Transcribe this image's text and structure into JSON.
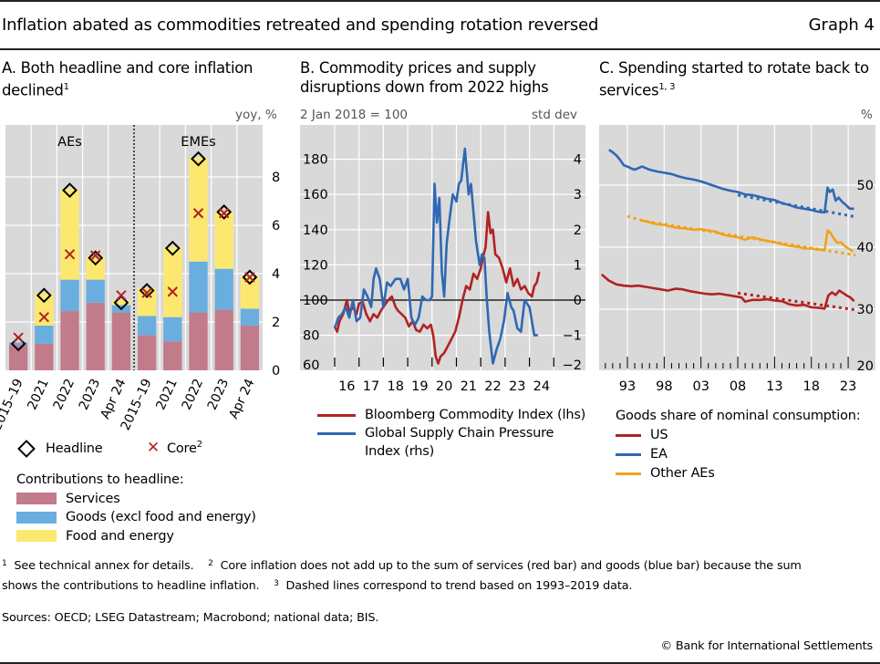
{
  "header": {
    "title": "Inflation abated as commodities retreated and spending rotation reversed",
    "graph_number": "Graph 4"
  },
  "colors": {
    "services": "#c27b8a",
    "goods": "#6aaee0",
    "food_energy": "#fde86f",
    "plot_bg": "#d9d9d9",
    "bloomberg": "#b22222",
    "gscpi": "#2f68b3",
    "us": "#b22222",
    "ea": "#2f68b3",
    "other_aes": "#f0a21c"
  },
  "panels": {
    "a": {
      "title_line1": "A. Both headline and core inflation",
      "title_line2": "declined",
      "title_sup": "1",
      "unit": "yoy, %",
      "legend_headline": "Headline",
      "legend_core": "Core",
      "legend_core_sup": "2",
      "contrib_title": "Contributions to headline:",
      "contrib_services": "Services",
      "contrib_goods": "Goods (excl food and energy)",
      "contrib_food": "Food and energy"
    },
    "b": {
      "title_line1": "B. Commodity prices and supply",
      "title_line2": "disruptions down from 2022 highs",
      "unit_left": "2 Jan 2018 = 100",
      "unit_right": "std dev",
      "legend_bloomberg": "Bloomberg Commodity Index (lhs)",
      "legend_gscpi_1": "Global Supply Chain Pressure",
      "legend_gscpi_2": "Index (rhs)"
    },
    "c": {
      "title_line1": "C. Spending started to rotate back to",
      "title_line2": "services",
      "title_sup": "1, 3",
      "unit": "%",
      "legend_title": "Goods share of nominal consumption:",
      "legend_us": "US",
      "legend_ea": "EA",
      "legend_other": "Other AEs"
    }
  },
  "footnotes": {
    "n1_mark": "1",
    "n1": "See technical annex for details.",
    "n2_mark": "2",
    "n2_a": "Core inflation does not add up to the sum of services (red bar) and goods (blue bar) because the sum",
    "n2_b": "shows the contributions to headline inflation.",
    "n3_mark": "3",
    "n3": "Dashed lines correspond to trend based on 1993–2019 data."
  },
  "sources": "Sources: OECD; LSEG Datastream; Macrobond; national data; BIS.",
  "copyright": "© Bank for International Settlements",
  "chart_data": [
    {
      "type": "bar",
      "stacked": true,
      "title": "A. Both headline and core inflation declined",
      "ylabel": "yoy, %",
      "ylim": [
        0,
        9
      ],
      "yticks": [
        0,
        2,
        4,
        6,
        8
      ],
      "y_axis_side": "right",
      "grid": true,
      "groups": [
        {
          "name": "AEs",
          "categories": [
            "2015–19",
            "2021",
            "2022",
            "2023",
            "Apr 24"
          ]
        },
        {
          "name": "EMEs",
          "categories": [
            "2015–19",
            "2021",
            "2022",
            "2023",
            "Apr 24"
          ]
        }
      ],
      "categories": [
        "2015–19",
        "2021",
        "2022",
        "2023",
        "Apr 24",
        "2015–19",
        "2021",
        "2022",
        "2023",
        "Apr 24"
      ],
      "series": [
        {
          "name": "Services",
          "kind": "bar",
          "values": [
            1.05,
            1.1,
            2.45,
            2.8,
            2.4,
            1.45,
            1.2,
            2.4,
            2.5,
            1.85
          ]
        },
        {
          "name": "Goods (excl food and energy)",
          "kind": "bar",
          "values": [
            0.1,
            0.75,
            1.3,
            0.95,
            0.3,
            0.8,
            1.0,
            2.1,
            1.7,
            0.7
          ]
        },
        {
          "name": "Food and energy",
          "kind": "bar",
          "values": [
            0.0,
            1.35,
            3.75,
            0.95,
            0.2,
            1.15,
            2.9,
            4.3,
            2.4,
            1.35
          ]
        },
        {
          "name": "Headline",
          "kind": "marker-diamond",
          "values": [
            1.1,
            3.1,
            7.45,
            4.65,
            2.8,
            3.3,
            5.05,
            8.75,
            6.55,
            3.85
          ]
        },
        {
          "name": "Core",
          "kind": "marker-x",
          "values": [
            1.35,
            2.2,
            4.8,
            4.75,
            3.1,
            3.2,
            3.25,
            6.5,
            6.5,
            3.85
          ]
        }
      ],
      "legend": [
        "Headline",
        "Core",
        "Services",
        "Goods (excl food and energy)",
        "Food and energy"
      ],
      "legend_placement": "bottom"
    },
    {
      "type": "line",
      "title": "B. Commodity prices and supply disruptions down from 2022 highs",
      "x_ticks": [
        "16",
        "17",
        "18",
        "19",
        "20",
        "21",
        "22",
        "23",
        "24"
      ],
      "xlim": [
        2015.6,
        2025.7
      ],
      "y_left": {
        "label": "2 Jan 2018 = 100",
        "lim": [
          60,
          200
        ],
        "ticks": [
          60,
          80,
          100,
          120,
          140,
          160,
          180
        ]
      },
      "y_right": {
        "label": "std dev",
        "lim": [
          -2,
          5
        ],
        "ticks": [
          -2,
          -1,
          0,
          1,
          2,
          3,
          4
        ]
      },
      "reference_line": {
        "axis": "left",
        "value": 100
      },
      "grid": true,
      "series": [
        {
          "name": "Bloomberg Commodity Index (lhs)",
          "axis": "left",
          "x": [
            2016.0,
            2016.1,
            2016.2,
            2016.35,
            2016.5,
            2016.6,
            2016.75,
            2016.9,
            2017.0,
            2017.15,
            2017.3,
            2017.45,
            2017.6,
            2017.75,
            2017.9,
            2018.05,
            2018.2,
            2018.35,
            2018.5,
            2018.6,
            2018.75,
            2018.9,
            2019.05,
            2019.2,
            2019.35,
            2019.5,
            2019.65,
            2019.8,
            2019.95,
            2020.05,
            2020.15,
            2020.25,
            2020.35,
            2020.5,
            2020.65,
            2020.8,
            2020.95,
            2021.1,
            2021.25,
            2021.4,
            2021.55,
            2021.7,
            2021.85,
            2022.0,
            2022.1,
            2022.2,
            2022.3,
            2022.4,
            2022.5,
            2022.6,
            2022.75,
            2022.9,
            2023.05,
            2023.2,
            2023.35,
            2023.5,
            2023.65,
            2023.8,
            2023.95,
            2024.1,
            2024.2,
            2024.3,
            2024.4
          ],
          "values": [
            85,
            82,
            88,
            92,
            100,
            93,
            96,
            92,
            98,
            99,
            92,
            88,
            92,
            90,
            94,
            97,
            100,
            102,
            96,
            94,
            92,
            90,
            85,
            88,
            83,
            82,
            86,
            84,
            86,
            80,
            68,
            64,
            68,
            70,
            74,
            78,
            82,
            90,
            100,
            108,
            106,
            115,
            112,
            118,
            125,
            130,
            150,
            138,
            140,
            126,
            124,
            118,
            110,
            118,
            108,
            112,
            106,
            108,
            104,
            102,
            108,
            110,
            116
          ]
        },
        {
          "name": "Global Supply Chain Pressure Index (rhs)",
          "axis": "right",
          "x": [
            2016.0,
            2016.15,
            2016.3,
            2016.45,
            2016.6,
            2016.75,
            2016.9,
            2017.05,
            2017.2,
            2017.35,
            2017.5,
            2017.6,
            2017.7,
            2017.85,
            2018.0,
            2018.15,
            2018.3,
            2018.5,
            2018.7,
            2018.85,
            2019.0,
            2019.15,
            2019.3,
            2019.45,
            2019.6,
            2019.75,
            2019.9,
            2020.0,
            2020.1,
            2020.2,
            2020.3,
            2020.4,
            2020.5,
            2020.6,
            2020.7,
            2020.85,
            2021.0,
            2021.1,
            2021.2,
            2021.35,
            2021.5,
            2021.6,
            2021.7,
            2021.8,
            2021.95,
            2022.05,
            2022.15,
            2022.25,
            2022.35,
            2022.5,
            2022.65,
            2022.8,
            2022.95,
            2023.1,
            2023.25,
            2023.35,
            2023.5,
            2023.65,
            2023.8,
            2023.9,
            2024.0,
            2024.1,
            2024.2,
            2024.35
          ],
          "values": [
            -0.8,
            -0.5,
            -0.4,
            -0.2,
            -0.5,
            0.0,
            -0.6,
            -0.5,
            0.3,
            0.1,
            -0.2,
            0.6,
            0.9,
            0.6,
            -0.2,
            0.5,
            0.4,
            0.6,
            0.6,
            0.3,
            0.6,
            -0.5,
            -0.7,
            -0.5,
            0.1,
            0.0,
            0.0,
            0.1,
            3.3,
            2.2,
            2.9,
            0.8,
            0.1,
            1.6,
            2.2,
            3.0,
            2.8,
            3.3,
            3.4,
            4.3,
            3.0,
            3.3,
            2.5,
            1.7,
            1.0,
            1.3,
            1.2,
            0.0,
            -0.9,
            -1.8,
            -1.4,
            -1.1,
            -0.6,
            0.2,
            -0.2,
            -0.3,
            -0.8,
            -0.9,
            0.0,
            -0.1,
            -0.2,
            -0.6,
            -1.0,
            -1.0
          ]
        }
      ],
      "legend_placement": "bottom"
    },
    {
      "type": "line",
      "title": "C. Spending started to rotate back to services",
      "ylabel": "%",
      "ylim": [
        20,
        60
      ],
      "yticks": [
        20,
        30,
        40,
        50
      ],
      "y_axis_side": "right",
      "x_ticks": [
        "93",
        "98",
        "03",
        "08",
        "13",
        "18",
        "23"
      ],
      "xlim": [
        1989.2,
        2026.7
      ],
      "grid": true,
      "series": [
        {
          "name": "US",
          "style": "solid",
          "x": [
            1989.5,
            1990.5,
            1991.5,
            1992.5,
            1993.5,
            1994.5,
            1995.5,
            1996.5,
            1997.5,
            1998.5,
            1999.5,
            2000.5,
            2001.5,
            2002.5,
            2003.5,
            2004.5,
            2005.5,
            2006.5,
            2007.5,
            2008.5,
            2009.0,
            2010.0,
            2011.0,
            2012.0,
            2013.0,
            2014.0,
            2015.0,
            2016.0,
            2017.0,
            2018.0,
            2019.0,
            2019.8,
            2020.3,
            2020.8,
            2021.3,
            2021.8,
            2022.3,
            2022.8,
            2023.3,
            2023.8
          ],
          "values": [
            35.6,
            34.6,
            34.0,
            33.8,
            33.7,
            33.8,
            33.6,
            33.4,
            33.2,
            33.0,
            33.3,
            33.2,
            32.9,
            32.7,
            32.5,
            32.4,
            32.5,
            32.3,
            32.1,
            31.9,
            31.2,
            31.5,
            31.5,
            31.6,
            31.4,
            31.3,
            30.8,
            30.6,
            30.7,
            30.3,
            30.2,
            30.1,
            32.2,
            32.7,
            32.3,
            33.0,
            32.6,
            32.2,
            31.9,
            31.3
          ]
        },
        {
          "name": "US trend",
          "style": "dotted",
          "x": [
            2008.0,
            2024.0
          ],
          "values": [
            32.6,
            29.9
          ]
        },
        {
          "name": "EA",
          "style": "solid",
          "x": [
            1990.5,
            1991.0,
            1991.5,
            1992.0,
            1992.5,
            1993.0,
            1993.5,
            1994.0,
            1995.0,
            1996.0,
            1997.0,
            1998.0,
            1999.0,
            2000.0,
            2001.0,
            2002.0,
            2003.0,
            2004.0,
            2005.0,
            2006.0,
            2007.0,
            2008.0,
            2009.0,
            2010.0,
            2011.0,
            2012.0,
            2013.0,
            2014.0,
            2015.0,
            2016.0,
            2017.0,
            2018.0,
            2019.0,
            2019.8,
            2020.2,
            2020.5,
            2020.9,
            2021.3,
            2021.7,
            2022.2,
            2022.7,
            2023.2,
            2023.8
          ],
          "values": [
            55.7,
            55.3,
            54.8,
            54.1,
            53.2,
            53.0,
            52.7,
            52.5,
            53.0,
            52.5,
            52.2,
            52.0,
            51.8,
            51.4,
            51.1,
            50.9,
            50.6,
            50.2,
            49.8,
            49.4,
            49.1,
            48.9,
            48.5,
            48.4,
            48.1,
            47.8,
            47.6,
            47.1,
            46.8,
            46.4,
            46.2,
            46.0,
            45.7,
            45.6,
            49.6,
            48.9,
            49.3,
            47.5,
            48.0,
            47.3,
            46.8,
            46.2,
            46.2
          ]
        },
        {
          "name": "EA trend",
          "style": "dotted",
          "x": [
            2008.0,
            2024.0
          ],
          "values": [
            48.4,
            44.9
          ]
        },
        {
          "name": "Other AEs",
          "style": "solid",
          "x": [
            1995.0,
            1996.0,
            1997.0,
            1998.0,
            1999.0,
            2000.0,
            2001.0,
            2002.0,
            2003.0,
            2004.0,
            2005.0,
            2006.0,
            2007.0,
            2008.0,
            2009.0,
            2010.0,
            2011.0,
            2012.0,
            2013.0,
            2014.0,
            2015.0,
            2016.0,
            2017.0,
            2018.0,
            2019.0,
            2019.8,
            2020.2,
            2020.6,
            2021.0,
            2021.5,
            2022.0,
            2022.5,
            2023.0,
            2023.7
          ],
          "values": [
            44.3,
            44.0,
            43.7,
            43.6,
            43.3,
            43.1,
            43.0,
            42.8,
            42.9,
            42.7,
            42.5,
            42.0,
            41.8,
            41.6,
            41.2,
            41.6,
            41.3,
            41.0,
            40.8,
            40.5,
            40.2,
            40.1,
            39.8,
            39.8,
            39.6,
            39.5,
            42.7,
            42.3,
            41.5,
            40.7,
            40.8,
            40.2,
            39.8,
            39.3
          ]
        },
        {
          "name": "Other AEs trend",
          "style": "dotted",
          "x": [
            1993.0,
            1995.0,
            2008.0,
            2024.0
          ],
          "values": [
            45.0,
            44.3,
            41.8,
            38.7
          ]
        }
      ],
      "legend": [
        "US",
        "EA",
        "Other AEs"
      ],
      "legend_placement": "bottom"
    }
  ]
}
